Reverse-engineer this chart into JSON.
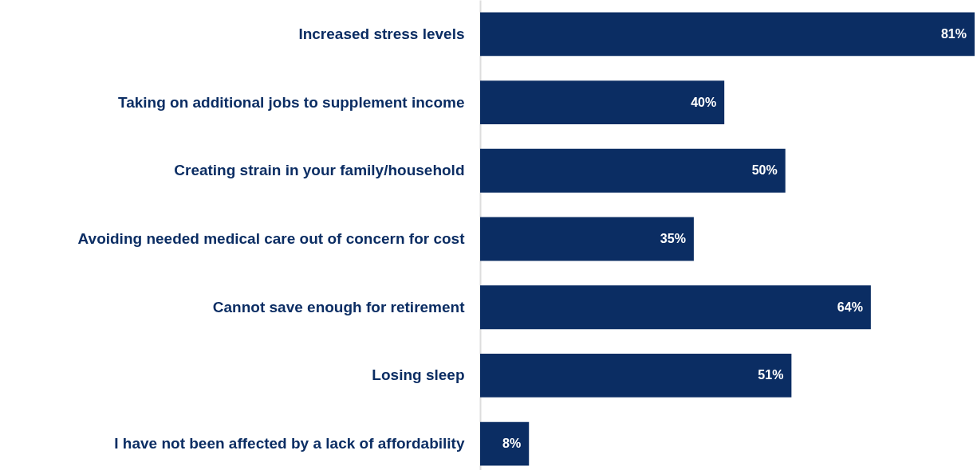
{
  "chart_data": {
    "type": "bar",
    "orientation": "horizontal",
    "categories": [
      "Increased stress levels",
      "Taking on additional jobs to supplement income",
      "Creating strain in your family/household",
      "Avoiding needed medical care out of concern for cost",
      "Cannot save enough for retirement",
      "Losing sleep",
      "I have not been affected by a lack of affordability"
    ],
    "values": [
      81,
      40,
      50,
      35,
      64,
      51,
      8
    ],
    "value_labels": [
      "81%",
      "40%",
      "50%",
      "35%",
      "64%",
      "51%",
      "8%"
    ],
    "color": "#0b2d63"
  }
}
